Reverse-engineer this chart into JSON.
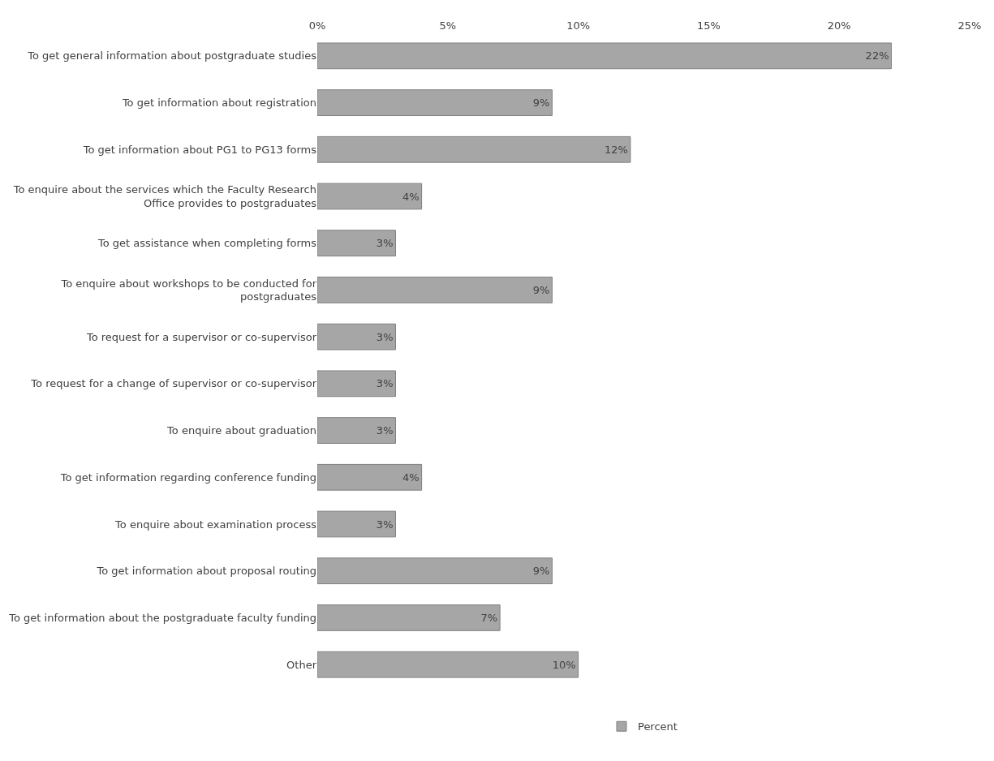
{
  "chart_data": {
    "type": "bar",
    "orientation": "horizontal",
    "categories": [
      "To get general information about postgraduate studies",
      "To get information about registration",
      "To get information about PG1 to PG13 forms",
      "To enquire about the services which the Faculty Research Office provides to postgraduates",
      "To get assistance when completing forms",
      "To enquire about workshops to be conducted for postgraduates",
      "To request for a supervisor or co-supervisor",
      "To request for a change of supervisor or co-supervisor",
      "To enquire about graduation",
      "To get information regarding conference funding",
      "To enquire about examination process",
      "To get information about proposal routing",
      "To get information about the postgraduate faculty funding",
      "Other"
    ],
    "series": [
      {
        "name": "Percent",
        "color": "#a6a6a6",
        "values": [
          22,
          9,
          12,
          4,
          3,
          9,
          3,
          3,
          3,
          4,
          3,
          9,
          7,
          10
        ],
        "value_labels": [
          "22%",
          "9%",
          "12%",
          "4%",
          "3%",
          "9%",
          "3%",
          "3%",
          "3%",
          "4%",
          "3%",
          "9%",
          "7%",
          "10%"
        ]
      }
    ],
    "xlim": [
      0,
      25
    ],
    "xticks": [
      {
        "value": 0,
        "label": "0%"
      },
      {
        "value": 5,
        "label": "5%"
      },
      {
        "value": 10,
        "label": "10%"
      },
      {
        "value": 15,
        "label": "15%"
      },
      {
        "value": 20,
        "label": "20%"
      },
      {
        "value": 25,
        "label": "25%"
      }
    ],
    "legend": "bottom"
  }
}
